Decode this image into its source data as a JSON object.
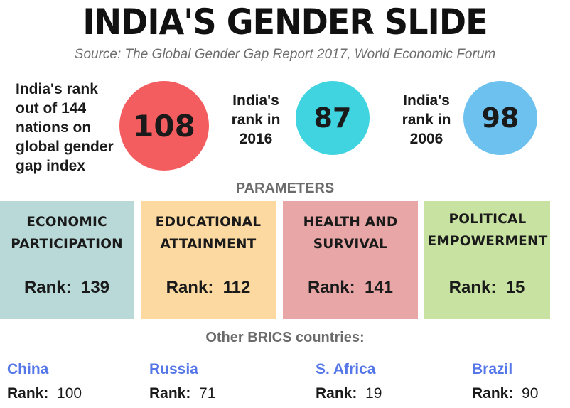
{
  "title": "INDIA'S GENDER SLIDE",
  "source": "Source: The Global Gender Gap Report 2017, World Economic Forum",
  "ranks": [
    {
      "label": "India's rank\nout of 144\nnations on\nglobal gender\ngap index",
      "value": "108",
      "color": "#f45d60"
    },
    {
      "label": "India's\nrank in\n2016",
      "value": "87",
      "color": "#3fd4e0"
    },
    {
      "label": "India's\nrank in\n2006",
      "value": "98",
      "color": "#6cc1ee"
    }
  ],
  "parameters_heading": "PARAMETERS",
  "parameters": [
    {
      "name": "ECONOMIC\nPARTICIPATION",
      "rank_label": "Rank:",
      "rank_value": "139",
      "color": "#b9d8d8"
    },
    {
      "name": "EDUCATIONAL\nATTAINMENT",
      "rank_label": "Rank:",
      "rank_value": "112",
      "color": "#fbd9a0"
    },
    {
      "name": "HEALTH AND\nSURVIVAL",
      "rank_label": "Rank:",
      "rank_value": "141",
      "color": "#e8a7a6"
    },
    {
      "name": "POLITICAL\nEMPOWERMENT",
      "rank_label": "Rank:",
      "rank_value": "15",
      "color": "#c7e2a1"
    }
  ],
  "brics_heading": "Other BRICS countries:",
  "brics": [
    {
      "country": "China",
      "rank_label": "Rank:",
      "rank_value": "100"
    },
    {
      "country": "Russia",
      "rank_label": "Rank:",
      "rank_value": "71"
    },
    {
      "country": "S. Africa",
      "rank_label": "Rank:",
      "rank_value": "19"
    },
    {
      "country": "Brazil",
      "rank_label": "Rank:",
      "rank_value": "90"
    }
  ]
}
